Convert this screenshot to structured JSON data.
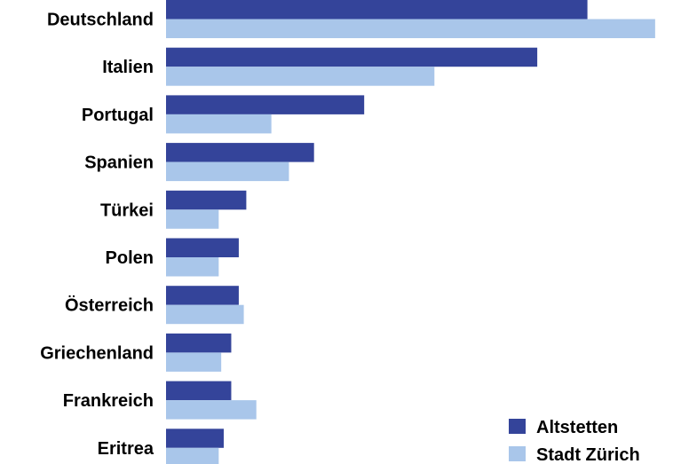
{
  "chart_data": {
    "type": "bar",
    "orientation": "horizontal",
    "categories": [
      "Deutschland",
      "Italien",
      "Portugal",
      "Spanien",
      "Türkei",
      "Polen",
      "Österreich",
      "Griechenland",
      "Frankreich",
      "Eritrea"
    ],
    "series": [
      {
        "name": "Altstetten",
        "color": "#34449A",
        "values": [
          8.4,
          7.4,
          3.95,
          2.95,
          1.6,
          1.45,
          1.45,
          1.3,
          1.3,
          1.15
        ]
      },
      {
        "name": "Stadt Zürich",
        "color": "#A9C6EA",
        "values": [
          9.75,
          5.35,
          2.1,
          2.45,
          1.05,
          1.05,
          1.55,
          1.1,
          1.8,
          1.05
        ]
      }
    ],
    "xlim": [
      0,
      10
    ],
    "grid": false,
    "legend_position": "bottom-right"
  }
}
